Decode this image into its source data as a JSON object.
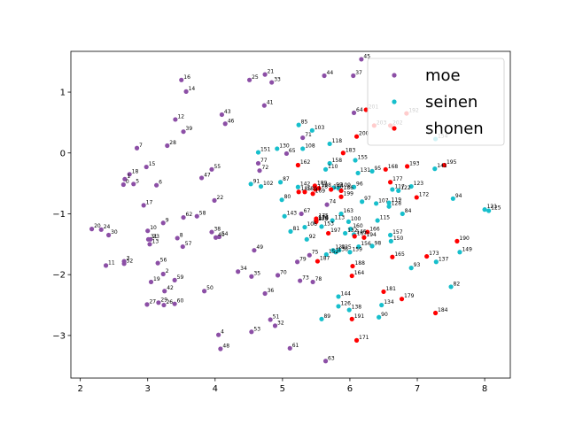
{
  "chart_data": {
    "type": "scatter",
    "title": "",
    "xlabel": "",
    "ylabel": "",
    "xlim": [
      1.86,
      8.38
    ],
    "ylim": [
      -3.7,
      1.67
    ],
    "xticks": [
      2,
      3,
      4,
      5,
      6,
      7,
      8
    ],
    "yticks": [
      -3,
      -2,
      -1,
      0,
      1
    ],
    "grid": false,
    "legend_position": "top-right",
    "series": [
      {
        "name": "moe",
        "color": "#8c4fa6",
        "points": [
          {
            "id": "0",
            "x": 2.64,
            "y": -0.52
          },
          {
            "id": "1",
            "x": 2.66,
            "y": -0.43
          },
          {
            "id": "2",
            "x": 3.23,
            "y": -1.99
          },
          {
            "id": "3",
            "x": 2.65,
            "y": -1.78
          },
          {
            "id": "4",
            "x": 4.05,
            "y": -2.99
          },
          {
            "id": "5",
            "x": 2.79,
            "y": -0.51
          },
          {
            "id": "6",
            "x": 3.13,
            "y": -0.53
          },
          {
            "id": "7",
            "x": 2.84,
            "y": 0.08
          },
          {
            "id": "8",
            "x": 3.44,
            "y": -1.4
          },
          {
            "id": "9",
            "x": 3.23,
            "y": -1.15
          },
          {
            "id": "10",
            "x": 3.0,
            "y": -1.28
          },
          {
            "id": "11",
            "x": 2.38,
            "y": -1.85
          },
          {
            "id": "12",
            "x": 3.41,
            "y": 0.55
          },
          {
            "id": "13",
            "x": 3.03,
            "y": -1.5
          },
          {
            "id": "14",
            "x": 3.57,
            "y": 1.01
          },
          {
            "id": "15",
            "x": 2.98,
            "y": -0.23
          },
          {
            "id": "16",
            "x": 3.5,
            "y": 1.2
          },
          {
            "id": "17",
            "x": 2.94,
            "y": -0.86
          },
          {
            "id": "18",
            "x": 2.73,
            "y": -0.35
          },
          {
            "id": "19",
            "x": 3.05,
            "y": -2.12
          },
          {
            "id": "20",
            "x": 2.17,
            "y": -1.25
          },
          {
            "id": "21",
            "x": 4.74,
            "y": 1.29
          },
          {
            "id": "22",
            "x": 3.99,
            "y": -0.78
          },
          {
            "id": "23",
            "x": 3.04,
            "y": -1.42
          },
          {
            "id": "24",
            "x": 2.31,
            "y": -1.26
          },
          {
            "id": "25",
            "x": 4.51,
            "y": 1.2
          },
          {
            "id": "26",
            "x": 3.24,
            "y": -2.5
          },
          {
            "id": "27",
            "x": 2.99,
            "y": -2.49
          },
          {
            "id": "28",
            "x": 3.29,
            "y": 0.12
          },
          {
            "id": "29",
            "x": 3.16,
            "y": -2.46
          },
          {
            "id": "30",
            "x": 2.42,
            "y": -1.35
          },
          {
            "id": "31",
            "x": 3.01,
            "y": -1.42
          },
          {
            "id": "32",
            "x": 4.89,
            "y": -2.84
          },
          {
            "id": "33",
            "x": 4.84,
            "y": 1.16
          },
          {
            "id": "34",
            "x": 4.34,
            "y": -1.95
          },
          {
            "id": "35",
            "x": 4.54,
            "y": -2.03
          },
          {
            "id": "36",
            "x": 4.74,
            "y": -2.31
          },
          {
            "id": "37",
            "x": 6.05,
            "y": 1.27
          },
          {
            "id": "38",
            "x": 3.95,
            "y": -1.3
          },
          {
            "id": "39",
            "x": 3.53,
            "y": 0.35
          },
          {
            "id": "40",
            "x": 4.01,
            "y": -1.39
          },
          {
            "id": "41",
            "x": 4.73,
            "y": 0.78
          },
          {
            "id": "42",
            "x": 3.25,
            "y": -2.27
          },
          {
            "id": "43",
            "x": 4.1,
            "y": 0.63
          },
          {
            "id": "44",
            "x": 5.62,
            "y": 1.27
          },
          {
            "id": "45",
            "x": 6.17,
            "y": 1.54
          },
          {
            "id": "46",
            "x": 4.15,
            "y": 0.48
          },
          {
            "id": "47",
            "x": 3.8,
            "y": -0.41
          },
          {
            "id": "48",
            "x": 4.08,
            "y": -3.22
          },
          {
            "id": "49",
            "x": 4.58,
            "y": -1.6
          },
          {
            "id": "50",
            "x": 3.84,
            "y": -2.27
          },
          {
            "id": "51",
            "x": 4.82,
            "y": -2.74
          },
          {
            "id": "52",
            "x": 2.65,
            "y": -1.82
          },
          {
            "id": "53",
            "x": 4.54,
            "y": -2.94
          },
          {
            "id": "54",
            "x": 4.06,
            "y": -1.38
          },
          {
            "id": "55",
            "x": 3.95,
            "y": -0.27
          },
          {
            "id": "56",
            "x": 3.15,
            "y": -1.81
          },
          {
            "id": "57",
            "x": 3.52,
            "y": -1.54
          },
          {
            "id": "58",
            "x": 3.73,
            "y": -1.04
          },
          {
            "id": "59",
            "x": 3.4,
            "y": -2.09
          },
          {
            "id": "60",
            "x": 3.4,
            "y": -2.48
          },
          {
            "id": "61",
            "x": 5.11,
            "y": -3.21
          },
          {
            "id": "62",
            "x": 3.53,
            "y": -1.06
          },
          {
            "id": "63",
            "x": 5.64,
            "y": -3.42
          },
          {
            "id": "64",
            "x": 6.06,
            "y": 0.66
          },
          {
            "id": "65",
            "x": 5.06,
            "y": -0.01
          },
          {
            "id": "67",
            "x": 5.28,
            "y": -1.0
          },
          {
            "id": "70",
            "x": 4.93,
            "y": -2.01
          },
          {
            "id": "71",
            "x": 5.3,
            "y": 0.25
          },
          {
            "id": "72",
            "x": 4.66,
            "y": -0.29
          },
          {
            "id": "73",
            "x": 5.26,
            "y": -2.1
          },
          {
            "id": "74",
            "x": 5.66,
            "y": -0.85
          },
          {
            "id": "75",
            "x": 5.4,
            "y": -1.68
          },
          {
            "id": "77",
            "x": 4.64,
            "y": -0.17
          },
          {
            "id": "78",
            "x": 5.45,
            "y": -2.12
          },
          {
            "id": "79",
            "x": 5.22,
            "y": -1.79
          }
        ]
      },
      {
        "name": "seinen",
        "color": "#17bfcc",
        "points": [
          {
            "id": "80",
            "x": 4.99,
            "y": -0.77
          },
          {
            "id": "81",
            "x": 5.12,
            "y": -1.29
          },
          {
            "id": "82",
            "x": 7.5,
            "y": -2.2
          },
          {
            "id": "84",
            "x": 6.78,
            "y": -1.0
          },
          {
            "id": "85",
            "x": 5.24,
            "y": 0.46
          },
          {
            "id": "87",
            "x": 4.97,
            "y": -0.48
          },
          {
            "id": "89",
            "x": 5.58,
            "y": -2.73
          },
          {
            "id": "90",
            "x": 6.43,
            "y": -2.7
          },
          {
            "id": "91",
            "x": 4.53,
            "y": -0.51
          },
          {
            "id": "92",
            "x": 5.36,
            "y": -1.42
          },
          {
            "id": "93",
            "x": 6.91,
            "y": -1.89
          },
          {
            "id": "94",
            "x": 7.53,
            "y": -0.75
          },
          {
            "id": "95",
            "x": 6.33,
            "y": -0.3
          },
          {
            "id": "96",
            "x": 6.06,
            "y": -0.56
          },
          {
            "id": "97",
            "x": 6.18,
            "y": -0.8
          },
          {
            "id": "98",
            "x": 6.33,
            "y": -1.53
          },
          {
            "id": "99",
            "x": 5.76,
            "y": -0.57
          },
          {
            "id": "100",
            "x": 5.98,
            "y": -1.13
          },
          {
            "id": "102",
            "x": 4.68,
            "y": -0.55
          },
          {
            "id": "103",
            "x": 5.44,
            "y": 0.37
          },
          {
            "id": "105",
            "x": 5.49,
            "y": -1.13
          },
          {
            "id": "106",
            "x": 5.33,
            "y": -1.22
          },
          {
            "id": "107",
            "x": 6.39,
            "y": -0.83
          },
          {
            "id": "108",
            "x": 5.3,
            "y": 0.07
          },
          {
            "id": "109",
            "x": 5.83,
            "y": -0.58
          },
          {
            "id": "110",
            "x": 5.64,
            "y": -0.27
          },
          {
            "id": "113",
            "x": 5.74,
            "y": -1.11
          },
          {
            "id": "115",
            "x": 6.41,
            "y": -1.11
          },
          {
            "id": "117",
            "x": 6.63,
            "y": -0.6
          },
          {
            "id": "118",
            "x": 5.7,
            "y": 0.15
          },
          {
            "id": "119",
            "x": 6.58,
            "y": -0.82
          },
          {
            "id": "121",
            "x": 8.0,
            "y": -0.93
          },
          {
            "id": "122",
            "x": 6.72,
            "y": -0.62
          },
          {
            "id": "123",
            "x": 6.91,
            "y": -0.55
          },
          {
            "id": "125",
            "x": 8.06,
            "y": -0.95
          },
          {
            "id": "126",
            "x": 5.83,
            "y": -2.52
          },
          {
            "id": "128",
            "x": 6.58,
            "y": -0.88
          },
          {
            "id": "130",
            "x": 4.92,
            "y": 0.07
          },
          {
            "id": "131",
            "x": 6.12,
            "y": -0.33
          },
          {
            "id": "132",
            "x": 5.93,
            "y": -1.32
          },
          {
            "id": "134",
            "x": 6.47,
            "y": -2.5
          },
          {
            "id": "135",
            "x": 5.84,
            "y": -1.6
          },
          {
            "id": "136",
            "x": 5.79,
            "y": -1.63
          },
          {
            "id": "137",
            "x": 7.28,
            "y": -1.79
          },
          {
            "id": "138",
            "x": 5.99,
            "y": -2.58
          },
          {
            "id": "139",
            "x": 5.75,
            "y": -1.6
          },
          {
            "id": "141",
            "x": 7.26,
            "y": -0.26
          },
          {
            "id": "142",
            "x": 5.23,
            "y": -0.56
          },
          {
            "id": "143",
            "x": 5.03,
            "y": -1.04
          },
          {
            "id": "144",
            "x": 5.83,
            "y": -2.36
          },
          {
            "id": "146",
            "x": 6.06,
            "y": -1.34
          },
          {
            "id": "149",
            "x": 7.63,
            "y": -1.63
          },
          {
            "id": "150",
            "x": 6.61,
            "y": -1.45
          },
          {
            "id": "151",
            "x": 4.64,
            "y": 0.01
          },
          {
            "id": "152",
            "x": 5.65,
            "y": -1.67
          },
          {
            "id": "153",
            "x": 5.58,
            "y": -1.21
          },
          {
            "id": "154",
            "x": 7.27,
            "y": 0.23
          },
          {
            "id": "155",
            "x": 6.08,
            "y": -0.12
          },
          {
            "id": "156",
            "x": 6.13,
            "y": -1.54
          },
          {
            "id": "157",
            "x": 6.6,
            "y": -1.35
          },
          {
            "id": "158",
            "x": 5.7,
            "y": -0.17
          },
          {
            "id": "159",
            "x": 6.0,
            "y": -1.63
          },
          {
            "id": "160",
            "x": 6.01,
            "y": -1.25
          },
          {
            "id": "163",
            "x": 5.87,
            "y": -1.0
          }
        ]
      },
      {
        "name": "shonen",
        "color": "#ff0000",
        "points": [
          {
            "id": "162",
            "x": 5.23,
            "y": -0.2
          },
          {
            "id": "164",
            "x": 6.03,
            "y": -2.02
          },
          {
            "id": "165",
            "x": 6.63,
            "y": -1.71
          },
          {
            "id": "166",
            "x": 6.26,
            "y": -1.3
          },
          {
            "id": "167",
            "x": 6.07,
            "y": -1.37
          },
          {
            "id": "168",
            "x": 6.53,
            "y": -0.27
          },
          {
            "id": "169",
            "x": 5.45,
            "y": -0.67
          },
          {
            "id": "170",
            "x": 5.5,
            "y": -1.13
          },
          {
            "id": "171",
            "x": 6.1,
            "y": -3.08
          },
          {
            "id": "172",
            "x": 6.99,
            "y": -0.73
          },
          {
            "id": "173",
            "x": 7.14,
            "y": -1.7
          },
          {
            "id": "174",
            "x": 5.5,
            "y": -1.12
          },
          {
            "id": "175",
            "x": 5.5,
            "y": -1.08
          },
          {
            "id": "176",
            "x": 5.5,
            "y": -1.11
          },
          {
            "id": "177",
            "x": 6.6,
            "y": -0.48
          },
          {
            "id": "178",
            "x": 5.49,
            "y": -0.6
          },
          {
            "id": "179",
            "x": 6.77,
            "y": -2.4
          },
          {
            "id": "180",
            "x": 5.33,
            "y": -0.64
          },
          {
            "id": "181",
            "x": 6.5,
            "y": -2.28
          },
          {
            "id": "183",
            "x": 5.9,
            "y": 0.0
          },
          {
            "id": "184",
            "x": 7.27,
            "y": -2.63
          },
          {
            "id": "185",
            "x": 5.24,
            "y": -0.64
          },
          {
            "id": "186",
            "x": 5.87,
            "y": -0.62
          },
          {
            "id": "187",
            "x": 5.52,
            "y": -1.78
          },
          {
            "id": "188",
            "x": 6.04,
            "y": -1.86
          },
          {
            "id": "189",
            "x": 5.48,
            "y": -0.54
          },
          {
            "id": "190",
            "x": 7.59,
            "y": -1.45
          },
          {
            "id": "191",
            "x": 6.03,
            "y": -2.73
          },
          {
            "id": "192",
            "x": 6.84,
            "y": 0.65
          },
          {
            "id": "193",
            "x": 6.85,
            "y": -0.22
          },
          {
            "id": "194",
            "x": 6.21,
            "y": -1.39
          },
          {
            "id": "195",
            "x": 7.4,
            "y": -0.2
          },
          {
            "id": "196",
            "x": 5.72,
            "y": -0.6
          },
          {
            "id": "197",
            "x": 5.68,
            "y": -1.32
          },
          {
            "id": "198",
            "x": 5.54,
            "y": -0.58
          },
          {
            "id": "199",
            "x": 5.87,
            "y": -0.72
          },
          {
            "id": "200",
            "x": 6.1,
            "y": 0.27
          },
          {
            "id": "201",
            "x": 6.24,
            "y": 0.71
          },
          {
            "id": "202",
            "x": 6.6,
            "y": 0.45
          },
          {
            "id": "203",
            "x": 6.36,
            "y": 0.45
          }
        ]
      }
    ]
  }
}
